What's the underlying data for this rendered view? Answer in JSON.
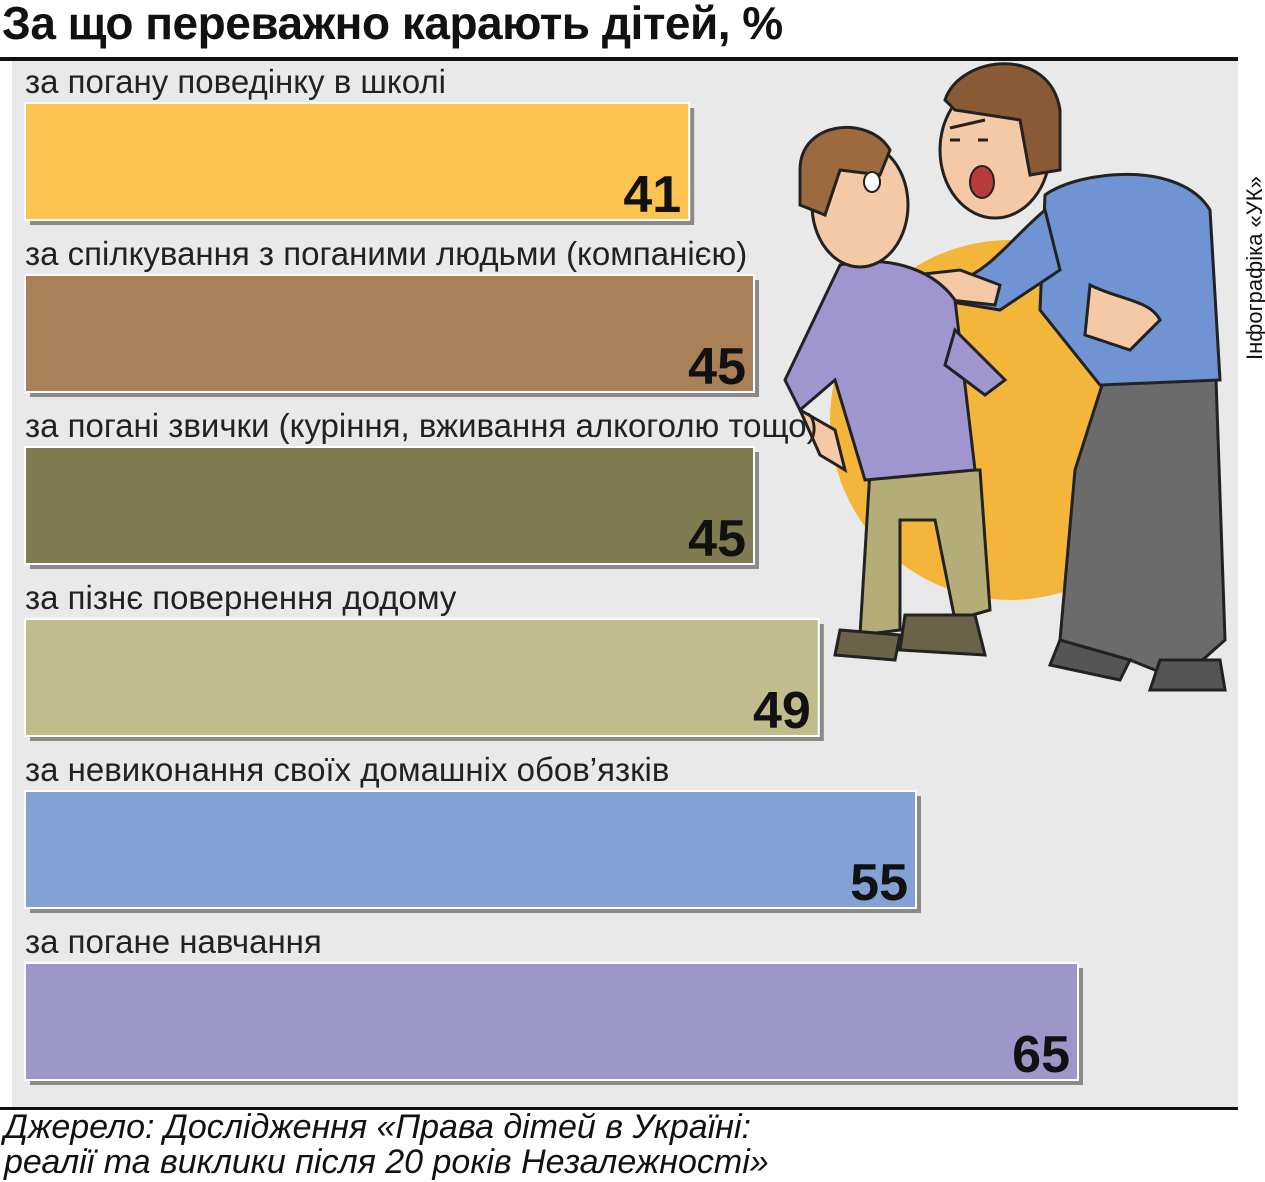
{
  "title": "За що переважно карають дітей, %",
  "credit": "Інфографіка «УК»",
  "source": {
    "line1": "Джерело: Дослідження «Права дітей в Україні:",
    "line2": "реалії та виклики після 20 років Незалежності»"
  },
  "illustration": "angry-father-scolding-boy-illustration",
  "chart_data": {
    "type": "bar",
    "orientation": "horizontal",
    "title": "За що переважно карають дітей, %",
    "categories": [
      "за погану поведінку в школі",
      "за спілкування з поганими людьми (компанією)",
      "за погані звички (куріння, вживання алкоголю тощо)",
      "за пізнє повернення додому",
      "за невиконання своїх домашніх обов’язків",
      "за погане навчання"
    ],
    "values": [
      41,
      45,
      45,
      49,
      55,
      65
    ],
    "data_labels": [
      "41",
      "45",
      "45",
      "49",
      "55",
      "65"
    ],
    "colors": [
      "#fdc350",
      "#a98058",
      "#807c52",
      "#c1bc8c",
      "#84a1d6",
      "#9d96c9"
    ],
    "grid": false,
    "legend": "none"
  }
}
